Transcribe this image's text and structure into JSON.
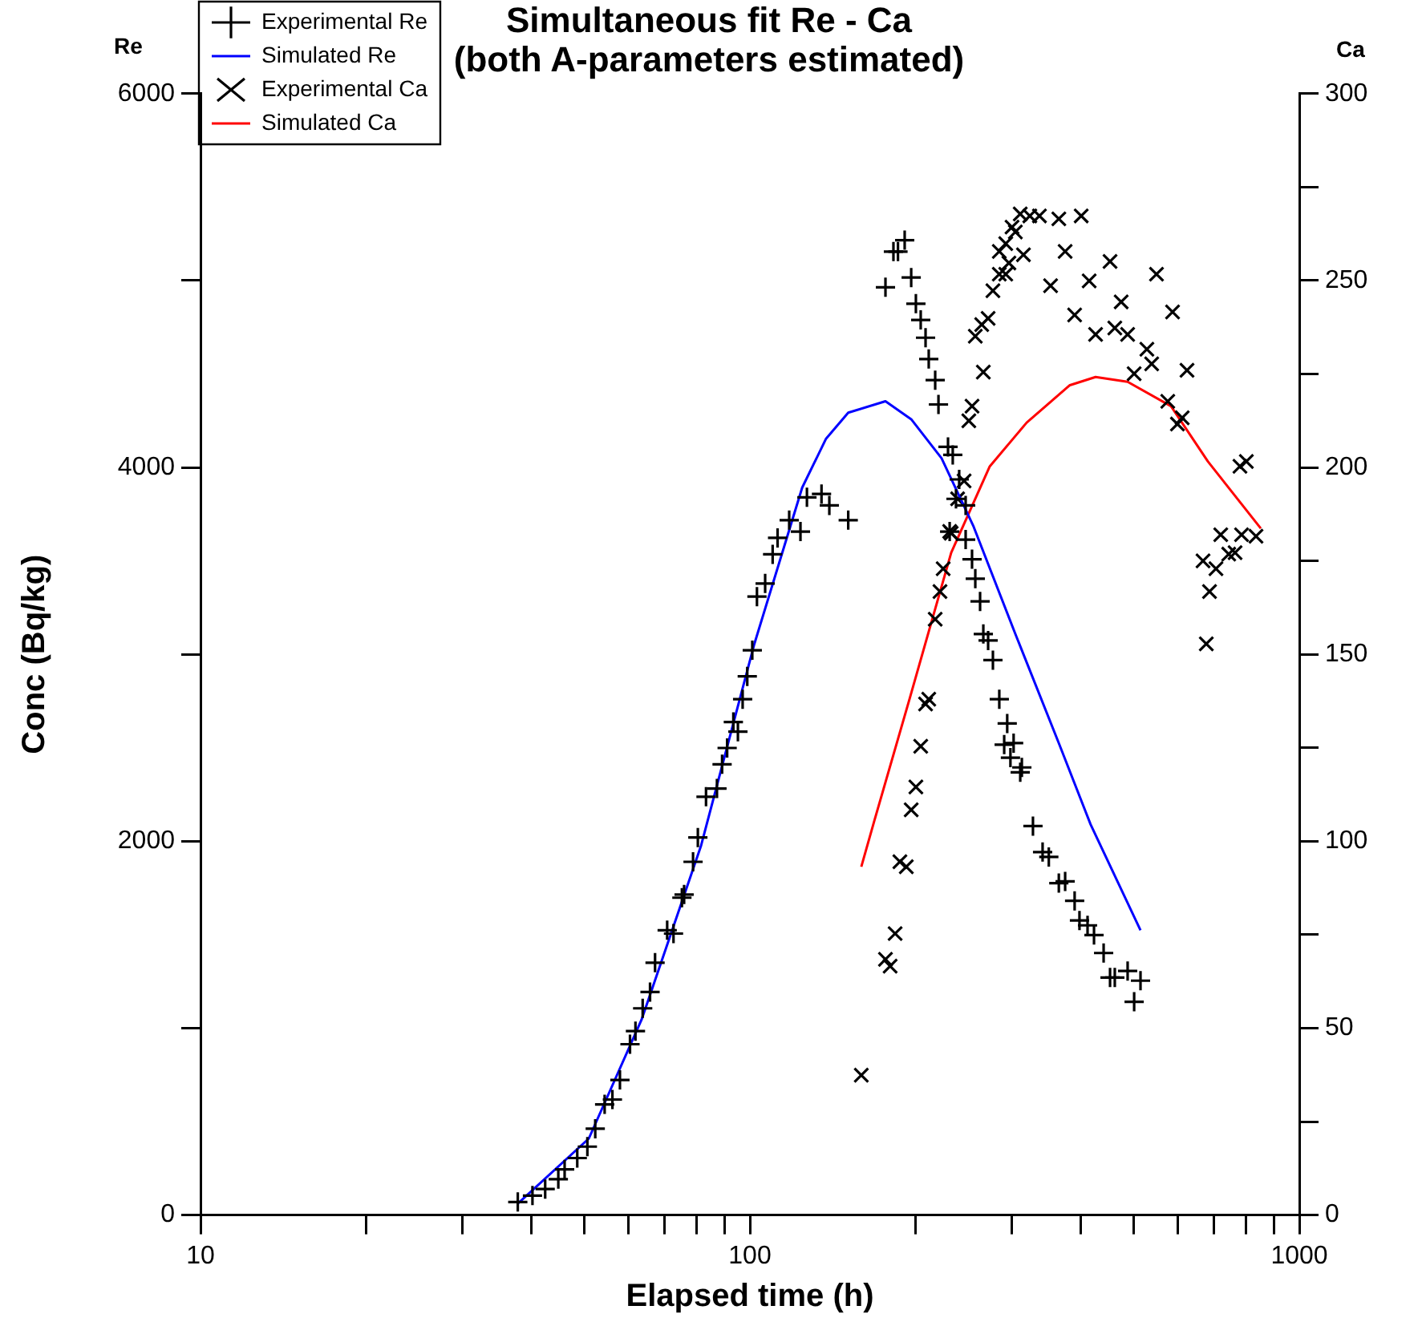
{
  "chart_data": {
    "type": "scatter",
    "title": [
      "Simultaneous fit Re - Ca",
      "(both A-parameters estimated)"
    ],
    "xlabel": "Elapsed time (h)",
    "ylabel": "Conc (Bq/kg)",
    "y2label": "Ca",
    "annotations": [
      "Re"
    ],
    "log": "x",
    "legend": "top left",
    "grid": false,
    "xlim": [
      10,
      1000
    ],
    "xticks": [
      10,
      {
        "value": 20,
        "label": null
      },
      {
        "value": 30,
        "label": null
      },
      {
        "value": 40,
        "label": null
      },
      {
        "value": 50,
        "label": null
      },
      {
        "value": 60,
        "label": null
      },
      {
        "value": 70,
        "label": null
      },
      {
        "value": 80,
        "label": null
      },
      {
        "value": 90,
        "label": null
      },
      100,
      {
        "value": 200,
        "label": null
      },
      {
        "value": 300,
        "label": null
      },
      {
        "value": 400,
        "label": null
      },
      {
        "value": 500,
        "label": null
      },
      {
        "value": 600,
        "label": null
      },
      {
        "value": 700,
        "label": null
      },
      {
        "value": 800,
        "label": null
      },
      {
        "value": 900,
        "label": null
      },
      1000
    ],
    "ylim": [
      0,
      6000
    ],
    "yticks": [
      0,
      {
        "value": 1000,
        "label": null
      },
      2000,
      {
        "value": 3000,
        "label": null
      },
      4000,
      {
        "value": 5000,
        "label": null
      },
      6000
    ],
    "y2lim": [
      0,
      300
    ],
    "y2ticks": [
      0,
      {
        "value": 25,
        "label": null
      },
      50,
      {
        "value": 75,
        "label": null
      },
      100,
      {
        "value": 125,
        "label": null
      },
      150,
      {
        "value": 175,
        "label": null
      },
      200,
      {
        "value": 225,
        "label": null
      },
      250,
      {
        "value": 275,
        "label": null
      },
      300
    ],
    "series": [
      {
        "name": "Experimental Re",
        "type": "scatter",
        "marker": "cross",
        "color": "#000000",
        "x": [
          37.8,
          40.2,
          42.4,
          44.8,
          46.0,
          48.5,
          50.6,
          52.3,
          54.4,
          56.2,
          58.0,
          60.5,
          61.9,
          63.8,
          65.8,
          67.2,
          70.7,
          72.6,
          75.2,
          75.9,
          78.8,
          80.4,
          83.2,
          87.1,
          89.0,
          90.9,
          93.3,
          95.1,
          97.0,
          98.9,
          101,
          103,
          106.6,
          110,
          112.3,
          117.9,
          123.6,
          127,
          135,
          139.5,
          151,
          176.5,
          182.5,
          186,
          191.3,
          196.6,
          200.5,
          204.6,
          208.8,
          211.6,
          217.4,
          220.4,
          229.4,
          234,
          240.4,
          237.2,
          247,
          231,
          247,
          253.7,
          257.2,
          262.4,
          266,
          271.4,
          276.9,
          284.4,
          294,
          290.3,
          302,
          298,
          312.6,
          310.5,
          327.5,
          341,
          350,
          365,
          374.8,
          390,
          398,
          411.7,
          423,
          440.4,
          452.4,
          461.5,
          487,
          514,
          500.5
        ],
        "values": [
          70,
          104,
          139,
          192,
          244,
          305,
          366,
          462,
          592,
          618,
          723,
          914,
          984,
          1106,
          1193,
          1350,
          1524,
          1506,
          1698,
          1715,
          1890,
          2020,
          2238,
          2282,
          2412,
          2499,
          2638,
          2586,
          2760,
          2882,
          3022,
          3309,
          3379,
          3535,
          3623,
          3718,
          3657,
          3840,
          3858,
          3797,
          3718,
          4964,
          5155,
          5155,
          5216,
          5016,
          4876,
          4789,
          4694,
          4580,
          4467,
          4337,
          4110,
          4067,
          3936,
          3832,
          3797,
          3657,
          3614,
          3509,
          3405,
          3283,
          3109,
          3074,
          2969,
          2760,
          2630,
          2517,
          2525,
          2447,
          2395,
          2369,
          2081,
          1942,
          1916,
          1776,
          1785,
          1681,
          1576,
          1550,
          1498,
          1402,
          1271,
          1271,
          1306,
          1254,
          1141
        ]
      },
      {
        "name": "Simulated Re",
        "type": "line",
        "marker": "none",
        "color": "#0000ff",
        "x": [
          37.8,
          50.9,
          63.5,
          81.5,
          101.7,
          124.5,
          137.6,
          151,
          176.5,
          196.6,
          223.3,
          255.4,
          304.2,
          365,
          417,
          514
        ],
        "values": [
          61,
          409,
          1045,
          1977,
          3048,
          3892,
          4154,
          4293,
          4354,
          4258,
          4049,
          3683,
          3109,
          2525,
          2090,
          1524
        ]
      },
      {
        "name": "Experimental Ca",
        "type": "scatter",
        "marker": "x",
        "axis": "y2",
        "color": "#000000",
        "x": [
          159.5,
          176.5,
          180,
          183.8,
          187.5,
          192.6,
          196.6,
          200.5,
          204.6,
          208.8,
          211.6,
          217.4,
          221.8,
          224.8,
          231,
          232.5,
          238.8,
          245.4,
          250.3,
          253.7,
          266,
          257.2,
          264.2,
          271.4,
          276.9,
          284.4,
          292.2,
          284.4,
          292.2,
          300,
          304.2,
          310.5,
          314.7,
          296.1,
          323.2,
          336.5,
          365,
          400.9,
          374.8,
          352.6,
          414.5,
          390,
          452.4,
          474,
          425.8,
          461.5,
          487,
          527.9,
          538.6,
          500.5,
          549.6,
          587.9,
          624.6,
          576.2,
          612.2,
          600,
          779.8,
          801,
          668,
          719.5,
          705.2,
          686.4,
          743.9,
          764,
          785,
          834,
          677.2
        ],
        "values": [
          37.4,
          68.4,
          66.6,
          75.3,
          94.5,
          93.2,
          108.4,
          114.5,
          125.4,
          136.7,
          138,
          159.4,
          166.8,
          172.9,
          182.9,
          182.4,
          191.6,
          196.4,
          212.5,
          216.4,
          225.5,
          235.1,
          238.2,
          239.9,
          247.3,
          251.7,
          251.7,
          257.8,
          259.9,
          264.3,
          263,
          267.8,
          256.9,
          254.7,
          267.3,
          267.3,
          266.5,
          267.3,
          257.8,
          248.6,
          249.9,
          240.8,
          255.1,
          244.3,
          235.6,
          237.3,
          235.6,
          231.6,
          227.7,
          225.1,
          251.7,
          241.6,
          226,
          217.7,
          213.3,
          211.6,
          200.3,
          201.6,
          175,
          182,
          172.9,
          166.8,
          176.8,
          177.2,
          182,
          181.6,
          152.8
        ]
      },
      {
        "name": "Simulated Ca",
        "type": "line",
        "marker": "none",
        "axis": "y2",
        "color": "#ff0000",
        "x": [
          159.5,
          168.4,
          195.2,
          232.5,
          273.3,
          319,
          382.3,
          425.8,
          487,
          584,
          681.8,
          851
        ],
        "values": [
          93.2,
          105.4,
          138,
          177.2,
          200.3,
          212,
          222,
          224.2,
          222.9,
          216.4,
          201.6,
          183.7
        ]
      }
    ]
  }
}
